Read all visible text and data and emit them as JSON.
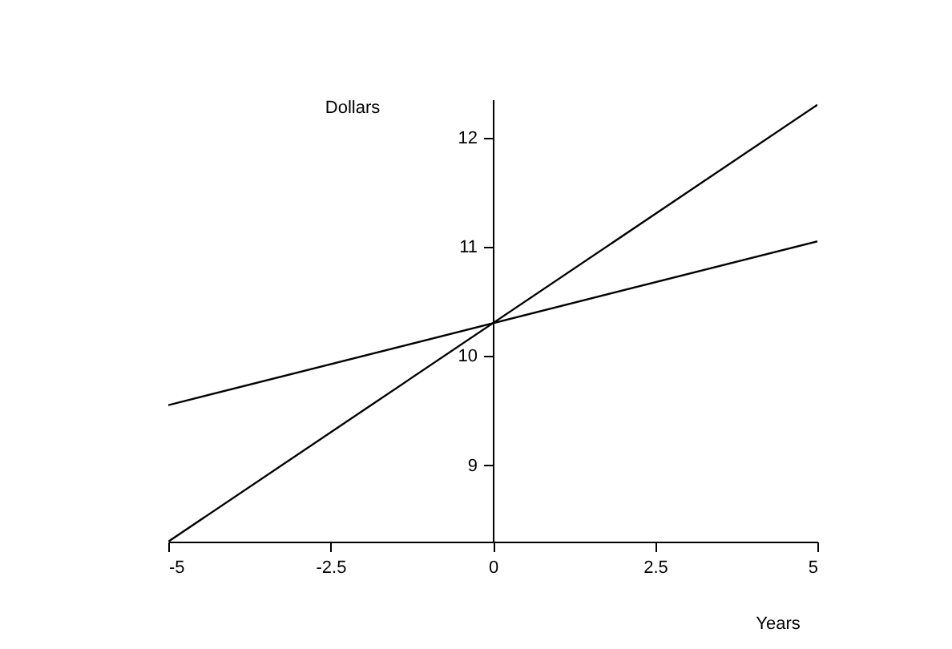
{
  "chart_data": {
    "type": "line",
    "xlabel": "Years",
    "ylabel": "Dollars",
    "x": [
      -5,
      5
    ],
    "series": [
      {
        "color": "#000000",
        "values": [
          8.3,
          12.3
        ]
      },
      {
        "color": "#000000",
        "values": [
          9.55,
          11.05
        ]
      }
    ],
    "xlim": [
      -5,
      5
    ],
    "xticks": [
      -5,
      -2.5,
      0,
      2.5,
      5
    ],
    "ylim": [
      8.3,
      12.35
    ],
    "yticks": [
      9,
      10,
      11,
      12
    ],
    "grid": false,
    "legend": false,
    "marker": "none",
    "line_style": "solid"
  }
}
